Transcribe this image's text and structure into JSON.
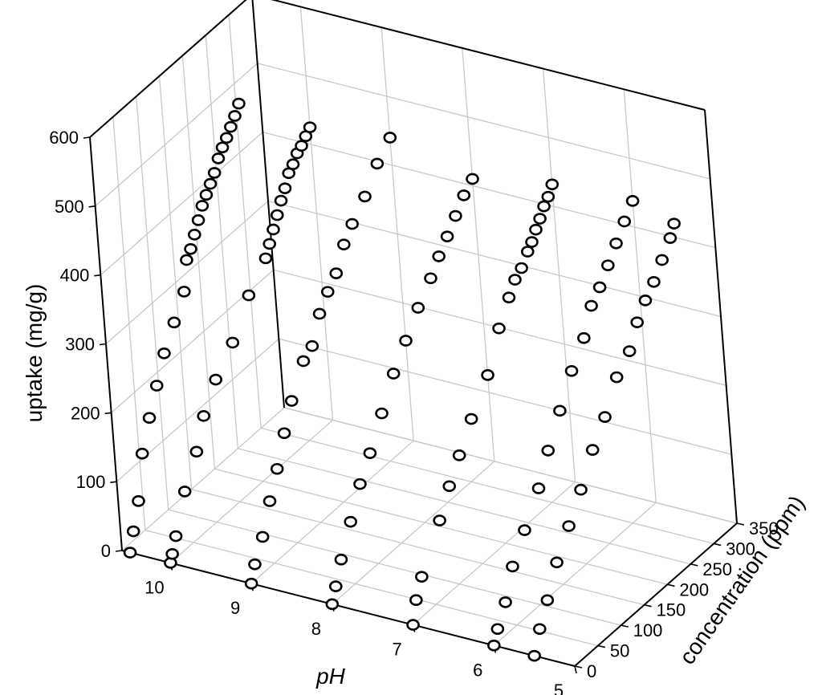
{
  "chart_data": {
    "type": "scatter3d",
    "xlabel": "pH",
    "ylabel": "concentration (ppm)",
    "zlabel": "uptake (mg/g)",
    "xlim": [
      5,
      10.6
    ],
    "ylim": [
      0,
      350
    ],
    "zlim": [
      0,
      600
    ],
    "x_ticks": [
      "5",
      "6",
      "7",
      "8",
      "9",
      "10"
    ],
    "y_ticks": [
      "0",
      "50",
      "100",
      "150",
      "200",
      "250",
      "300",
      "350"
    ],
    "z_ticks": [
      "0",
      "100",
      "200",
      "300",
      "400",
      "500",
      "600"
    ],
    "grid": true,
    "marker": "open-circle",
    "series": [
      {
        "ph": 10.5,
        "points": [
          [
            0,
            0
          ],
          [
            10,
            25
          ],
          [
            25,
            60
          ],
          [
            40,
            120
          ],
          [
            60,
            160
          ],
          [
            80,
            195
          ],
          [
            100,
            230
          ],
          [
            125,
            260
          ],
          [
            150,
            290
          ],
          [
            160,
            330
          ],
          [
            170,
            340
          ],
          [
            180,
            355
          ],
          [
            190,
            370
          ],
          [
            200,
            385
          ],
          [
            210,
            395
          ],
          [
            220,
            405
          ],
          [
            230,
            415
          ],
          [
            240,
            430
          ],
          [
            250,
            440
          ],
          [
            260,
            448
          ],
          [
            270,
            458
          ],
          [
            280,
            468
          ],
          [
            290,
            480
          ]
        ]
      },
      {
        "ph": 10.0,
        "points": [
          [
            0,
            0
          ],
          [
            5,
            10
          ],
          [
            15,
            30
          ],
          [
            40,
            80
          ],
          [
            70,
            120
          ],
          [
            90,
            160
          ],
          [
            120,
            195
          ],
          [
            160,
            225
          ],
          [
            200,
            270
          ],
          [
            240,
            300
          ],
          [
            250,
            315
          ],
          [
            260,
            330
          ],
          [
            270,
            345
          ],
          [
            280,
            360
          ],
          [
            290,
            372
          ],
          [
            300,
            388
          ],
          [
            310,
            395
          ],
          [
            320,
            405
          ],
          [
            330,
            410
          ],
          [
            340,
            418
          ],
          [
            350,
            425
          ]
        ]
      },
      {
        "ph": 9.0,
        "points": [
          [
            0,
            0
          ],
          [
            10,
            22
          ],
          [
            30,
            50
          ],
          [
            50,
            90
          ],
          [
            70,
            125
          ],
          [
            90,
            165
          ],
          [
            110,
            200
          ],
          [
            140,
            240
          ],
          [
            160,
            250
          ],
          [
            180,
            285
          ],
          [
            200,
            305
          ],
          [
            220,
            320
          ],
          [
            240,
            350
          ],
          [
            260,
            368
          ],
          [
            290,
            390
          ],
          [
            320,
            420
          ],
          [
            350,
            440
          ]
        ]
      },
      {
        "ph": 8.0,
        "points": [
          [
            0,
            0
          ],
          [
            10,
            20
          ],
          [
            25,
            50
          ],
          [
            50,
            90
          ],
          [
            75,
            130
          ],
          [
            100,
            160
          ],
          [
            130,
            200
          ],
          [
            160,
            240
          ],
          [
            190,
            270
          ],
          [
            220,
            300
          ],
          [
            250,
            325
          ],
          [
            270,
            345
          ],
          [
            290,
            362
          ],
          [
            310,
            380
          ],
          [
            330,
            398
          ],
          [
            350,
            410
          ]
        ]
      },
      {
        "ph": 7.0,
        "points": [
          [
            0,
            0
          ],
          [
            10,
            30
          ],
          [
            25,
            55
          ],
          [
            70,
            110
          ],
          [
            95,
            145
          ],
          [
            120,
            175
          ],
          [
            150,
            210
          ],
          [
            190,
            250
          ],
          [
            220,
            300
          ],
          [
            245,
            330
          ],
          [
            260,
            347
          ],
          [
            275,
            355
          ],
          [
            290,
            370
          ],
          [
            300,
            378
          ],
          [
            310,
            390
          ],
          [
            320,
            400
          ],
          [
            330,
            412
          ],
          [
            340,
            420
          ],
          [
            350,
            432
          ]
        ]
      },
      {
        "ph": 6.0,
        "points": [
          [
            0,
            0
          ],
          [
            10,
            18
          ],
          [
            30,
            45
          ],
          [
            50,
            85
          ],
          [
            80,
            120
          ],
          [
            115,
            160
          ],
          [
            140,
            200
          ],
          [
            170,
            240
          ],
          [
            200,
            280
          ],
          [
            230,
            310
          ],
          [
            250,
            345
          ],
          [
            270,
            360
          ],
          [
            290,
            380
          ],
          [
            310,
            400
          ],
          [
            330,
            420
          ],
          [
            350,
            438
          ]
        ]
      },
      {
        "ph": 5.5,
        "points": [
          [
            0,
            0
          ],
          [
            15,
            30
          ],
          [
            35,
            60
          ],
          [
            60,
            100
          ],
          [
            90,
            135
          ],
          [
            120,
            170
          ],
          [
            150,
            210
          ],
          [
            180,
            240
          ],
          [
            210,
            280
          ],
          [
            240,
            300
          ],
          [
            260,
            330
          ],
          [
            280,
            350
          ],
          [
            300,
            365
          ],
          [
            320,
            385
          ],
          [
            340,
            405
          ],
          [
            350,
            420
          ]
        ]
      }
    ]
  }
}
